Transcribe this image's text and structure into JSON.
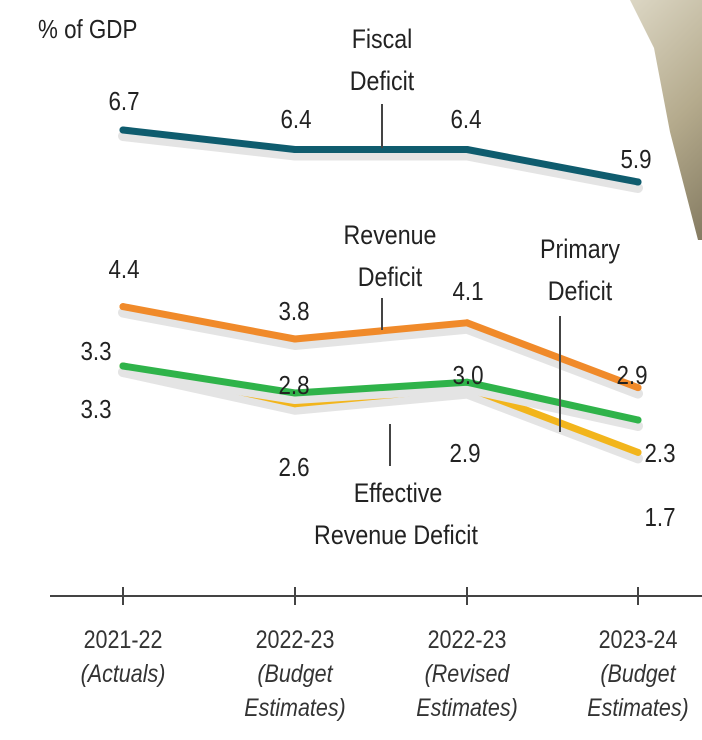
{
  "unit_label": "% of GDP",
  "colors": {
    "fiscal": "#0f5c6e",
    "revenue": "#f08a2a",
    "primary": "#2fb34a",
    "effective": "#f2b51c",
    "axis": "#444444",
    "text": "#222222"
  },
  "chart_data": {
    "type": "line",
    "title": "",
    "ylabel": "% of GDP",
    "categories": [
      "2021-22 (Actuals)",
      "2022-23 (Budget Estimates)",
      "2022-23 (Revised Estimates)",
      "2023-24 (Budget Estimates)"
    ],
    "category_lines": [
      [
        "2021-22",
        "(Actuals)"
      ],
      [
        "2022-23",
        "(Budget",
        "Estimates)"
      ],
      [
        "2022-23",
        "(Revised",
        "Estimates)"
      ],
      [
        "2023-24",
        "(Budget",
        "Estimates)"
      ]
    ],
    "series": [
      {
        "key": "fiscal",
        "name": "Fiscal Deficit",
        "name_lines": [
          "Fiscal",
          "Deficit"
        ],
        "values": [
          6.7,
          6.4,
          6.4,
          5.9
        ]
      },
      {
        "key": "revenue",
        "name": "Revenue Deficit",
        "name_lines": [
          "Revenue",
          "Deficit"
        ],
        "values": [
          4.4,
          3.8,
          4.1,
          2.9
        ]
      },
      {
        "key": "primary",
        "name": "Primary Deficit",
        "name_lines": [
          "Primary",
          "Deficit"
        ],
        "values": [
          3.3,
          2.8,
          3.0,
          2.3
        ]
      },
      {
        "key": "effective",
        "name": "Effective Revenue Deficit",
        "name_lines": [
          "Effective",
          "Revenue Deficit"
        ],
        "values": [
          3.3,
          2.6,
          2.9,
          1.7
        ]
      }
    ],
    "grid": false,
    "legend": "inline"
  }
}
